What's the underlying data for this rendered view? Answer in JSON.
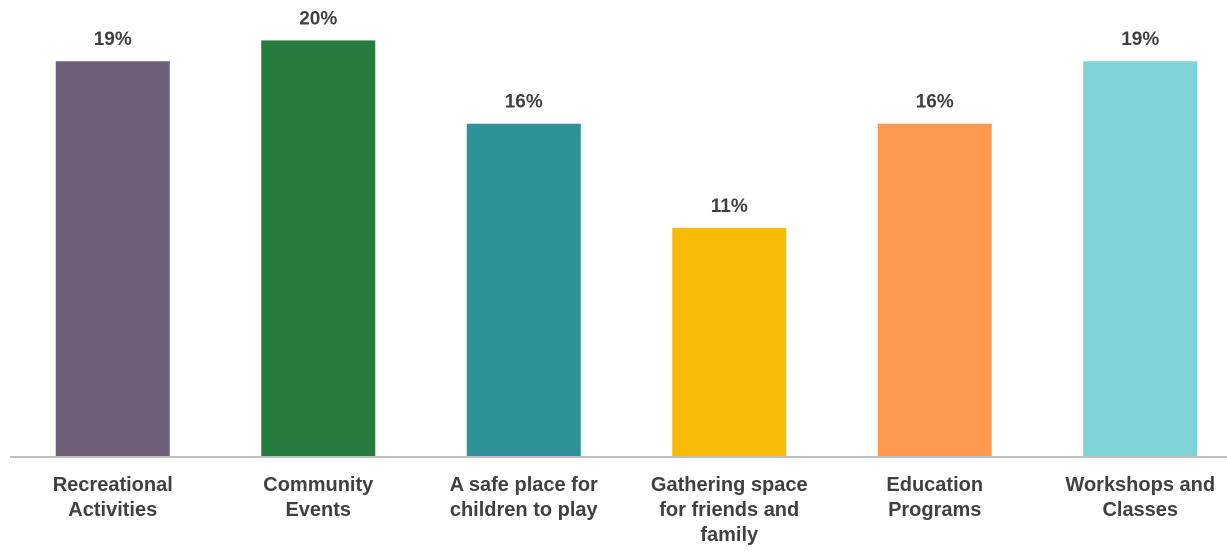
{
  "chart_data": {
    "type": "bar",
    "categories": [
      [
        "Recreational",
        "Activities"
      ],
      [
        "Community",
        "Events"
      ],
      [
        "A safe place for",
        "children to play"
      ],
      [
        "Gathering space",
        "for friends and",
        "family"
      ],
      [
        "Education",
        "Programs"
      ],
      [
        "Workshops and",
        "Classes"
      ]
    ],
    "values": [
      19,
      20,
      16,
      11,
      16,
      19
    ],
    "value_labels": [
      "19%",
      "20%",
      "16%",
      "11%",
      "16%",
      "19%"
    ],
    "colors": [
      "#705f78",
      "#257c3e",
      "#2d9297",
      "#f7bb08",
      "#fd9a4f",
      "#7fd2d6"
    ],
    "axis_color": "#bfbfbf",
    "title": "",
    "xlabel": "",
    "ylabel": "",
    "ylim": [
      0,
      20.5
    ],
    "grid": false,
    "legend": "none"
  }
}
